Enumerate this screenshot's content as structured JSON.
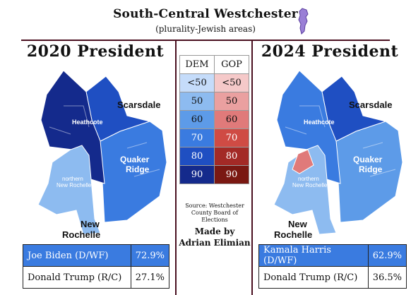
{
  "title": "South-Central Westchester",
  "subtitle": "(plurality-Jewish areas)",
  "icon": "westchester-county-icon",
  "colors": {
    "rule": "#4a1020",
    "dem": [
      "#c5dcfa",
      "#8dbbf0",
      "#5d9be8",
      "#3a7be0",
      "#1f4fc2",
      "#142a8c"
    ],
    "gop": [
      "#f5c9c9",
      "#eaa0a0",
      "#e07a7a",
      "#cf4b44",
      "#a32a26",
      "#7a1812"
    ]
  },
  "legend": {
    "headers": [
      "DEM",
      "GOP"
    ],
    "bins": [
      "<50",
      "50",
      "60",
      "70",
      "80",
      "90"
    ]
  },
  "source": "Source: Westchester County Board of Elections",
  "credit": {
    "line1": "Made by",
    "line2": "Adrian Elimian"
  },
  "maps": [
    {
      "heading": "2020 President",
      "labels": {
        "scarsdale": "Scarsdale",
        "heathcote": "Heathcote",
        "quaker1": "Quaker",
        "quaker2": "Ridge",
        "nr_small1": "northern",
        "nr_small2": "New Rochelle",
        "nr1": "New",
        "nr2": "Rochelle"
      },
      "results": [
        {
          "candidate": "Joe Biden (D/WF)",
          "pct": "72.9%"
        },
        {
          "candidate": "Donald Trump (R/C)",
          "pct": "27.1%"
        }
      ]
    },
    {
      "heading": "2024 President",
      "labels": {
        "scarsdale": "Scarsdale",
        "heathcote": "Heathcote",
        "quaker1": "Quaker",
        "quaker2": "Ridge",
        "nr_small1": "northern",
        "nr_small2": "New Rochelle",
        "nr1": "New",
        "nr2": "Rochelle"
      },
      "results": [
        {
          "candidate": "Kamala Harris (D/WF)",
          "pct": "62.9%"
        },
        {
          "candidate": "Donald Trump (R/C)",
          "pct": "36.5%"
        }
      ]
    }
  ]
}
